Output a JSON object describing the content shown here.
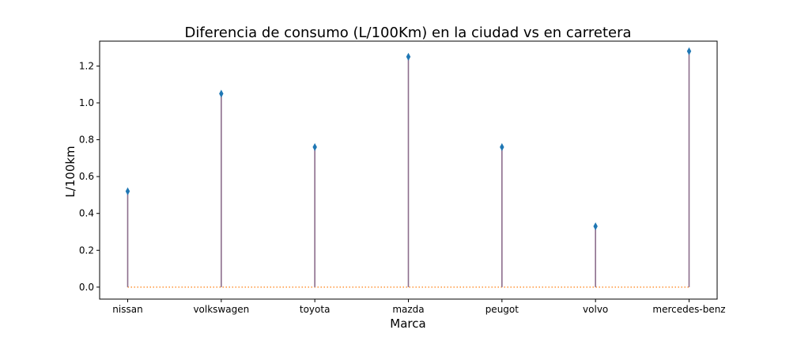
{
  "chart_data": {
    "type": "stem",
    "title": "Diferencia de consumo (L/100Km) en la ciudad vs en carretera",
    "xlabel": "Marca",
    "ylabel": "L/100km",
    "categories": [
      "nissan",
      "volkswagen",
      "toyota",
      "mazda",
      "peugot",
      "volvo",
      "mercedes-benz"
    ],
    "values": [
      0.52,
      1.05,
      0.76,
      1.25,
      0.76,
      0.33,
      1.28
    ],
    "ylim": [
      -0.065,
      1.335
    ],
    "yticks": [
      0.0,
      0.2,
      0.4,
      0.6,
      0.8,
      1.0,
      1.2
    ],
    "ytick_labels": [
      "0.0",
      "0.2",
      "0.4",
      "0.6",
      "0.8",
      "1.0",
      "1.2"
    ],
    "baseline": 0.0,
    "grid": false,
    "colors": {
      "stem": "#8c6d8c",
      "marker": "#1f77b4",
      "baseline": "#ff7f0e"
    }
  }
}
